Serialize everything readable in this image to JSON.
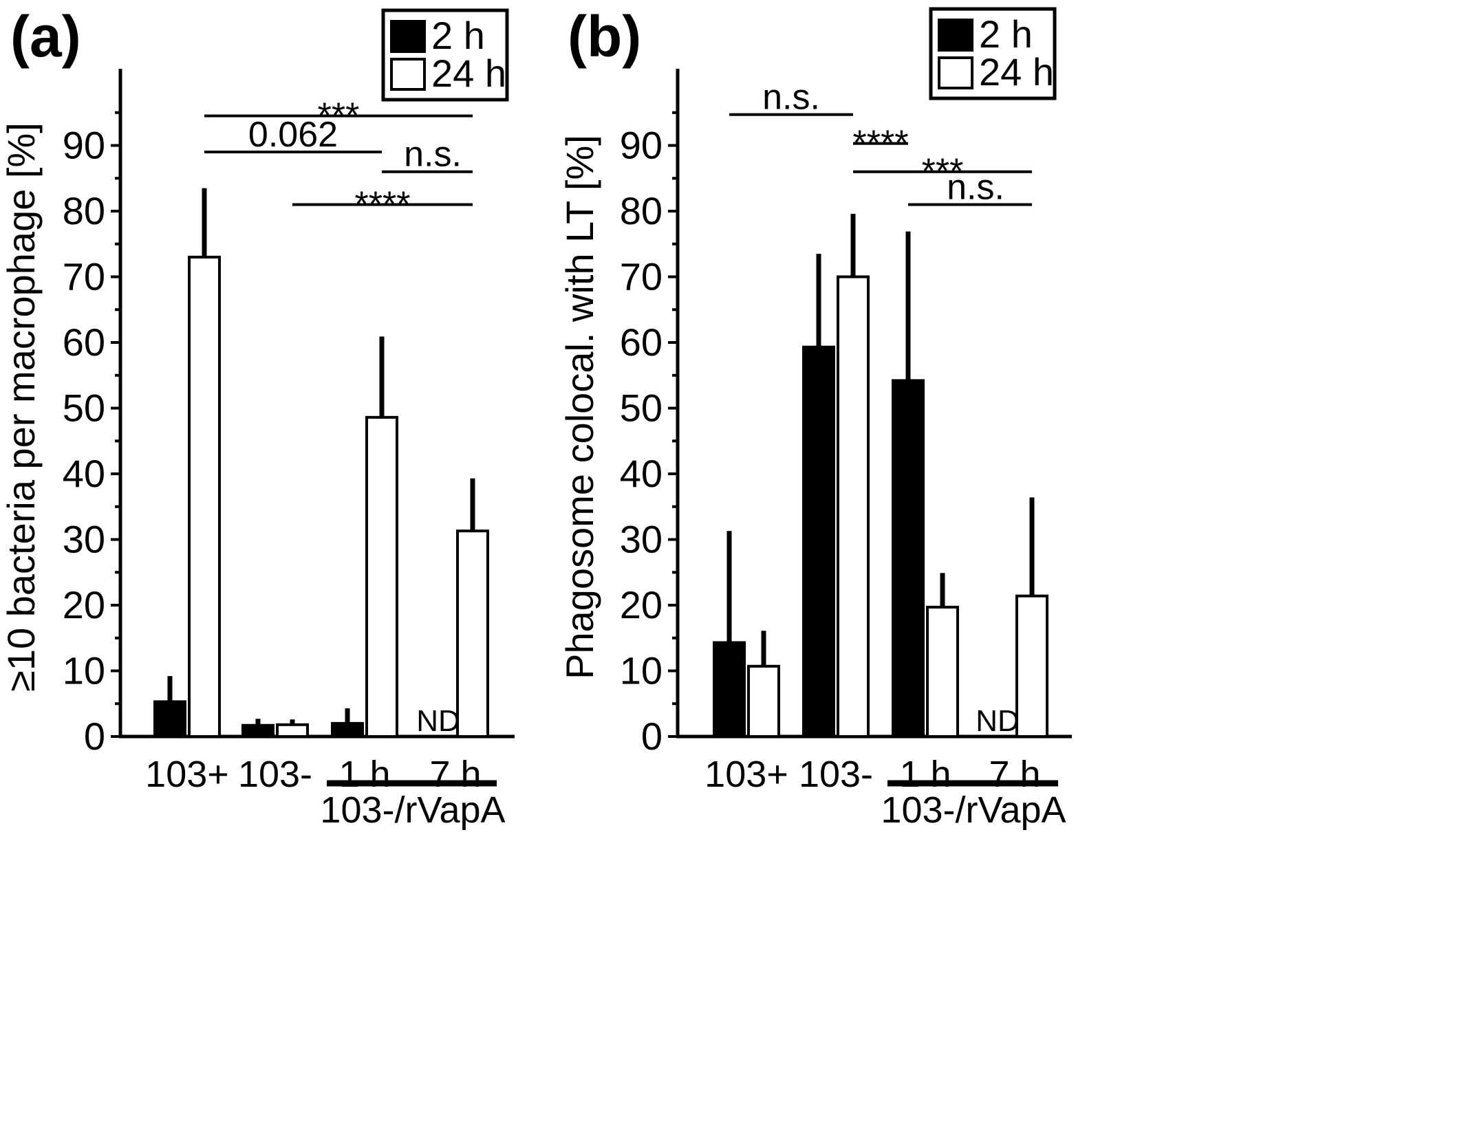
{
  "chart_data": [
    {
      "type": "bar",
      "panel_label": "(a)",
      "ylabel": "≥10 bacteria per macrophage [%]",
      "ylim": [
        0,
        100
      ],
      "yticks": [
        0,
        10,
        20,
        30,
        40,
        50,
        60,
        70,
        80,
        90
      ],
      "categories": [
        "103+",
        "103-",
        "1 h",
        "7 h"
      ],
      "group_label": "103-/rVapA",
      "series": [
        {
          "name": "2 h",
          "color": "#000000",
          "values": [
            5.3,
            1.7,
            2.0,
            null
          ],
          "errors": [
            3.9,
            1.0,
            2.3,
            null
          ]
        },
        {
          "name": "24 h",
          "color": "#ffffff",
          "values": [
            73.0,
            1.8,
            48.6,
            31.3
          ],
          "errors": [
            10.5,
            0.8,
            12.3,
            8.0
          ]
        }
      ],
      "nd_label": "ND",
      "legend": {
        "position": "top-right",
        "entries": [
          "2 h",
          "24 h"
        ]
      },
      "significance": [
        {
          "label": "***",
          "from": [
            "103+",
            "24 h"
          ],
          "to": [
            "7 h",
            "24 h"
          ],
          "y": 94.5
        },
        {
          "label": "0.062",
          "from": [
            "103+",
            "24 h"
          ],
          "to": [
            "1 h",
            "24 h"
          ],
          "y": 89.0
        },
        {
          "label": "n.s.",
          "from": [
            "1 h",
            "24 h"
          ],
          "to": [
            "7 h",
            "24 h"
          ],
          "y": 86.0
        },
        {
          "label": "****",
          "from": [
            "103-",
            "24 h"
          ],
          "to": [
            "7 h",
            "24 h"
          ],
          "y": 81.0
        }
      ]
    },
    {
      "type": "bar",
      "panel_label": "(b)",
      "ylabel": "Phagosome colocal. with LT [%]",
      "ylim": [
        0,
        100
      ],
      "yticks": [
        0,
        10,
        20,
        30,
        40,
        50,
        60,
        70,
        80,
        90
      ],
      "categories": [
        "103+",
        "103-",
        "1 h",
        "7 h"
      ],
      "group_label": "103-/rVapA",
      "series": [
        {
          "name": "2 h",
          "color": "#000000",
          "values": [
            14.3,
            59.3,
            54.2,
            null
          ],
          "errors": [
            17.0,
            14.2,
            22.7,
            null
          ]
        },
        {
          "name": "24 h",
          "color": "#ffffff",
          "values": [
            10.7,
            70.0,
            19.7,
            21.4
          ],
          "errors": [
            5.4,
            9.6,
            5.2,
            15.0
          ]
        }
      ],
      "nd_label": "ND",
      "legend": {
        "position": "top-right",
        "entries": [
          "2 h",
          "24 h"
        ]
      },
      "significance": [
        {
          "label": "n.s.",
          "from": [
            "103+",
            "2 h"
          ],
          "to": [
            "103-",
            "24 h"
          ],
          "y": 94.7
        },
        {
          "label": "****",
          "from": [
            "103-",
            "24 h"
          ],
          "to": [
            "1 h",
            "2 h"
          ],
          "y": 90.3
        },
        {
          "label": "***",
          "from": [
            "103-",
            "24 h"
          ],
          "to": [
            "7 h",
            "24 h"
          ],
          "y": 86.0
        },
        {
          "label": "n.s.",
          "from": [
            "1 h",
            "2 h"
          ],
          "to": [
            "7 h",
            "24 h"
          ],
          "y": 81.0
        }
      ]
    }
  ]
}
